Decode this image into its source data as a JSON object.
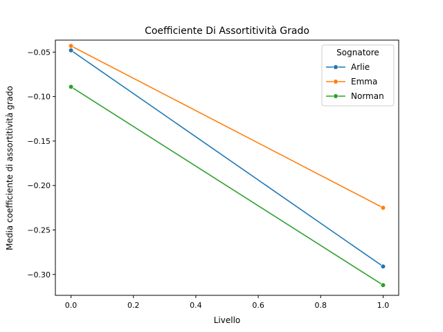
{
  "chart_data": {
    "type": "line",
    "title": "Coefficiente Di Assortitività Grado",
    "xlabel": "Livello",
    "ylabel": "Media coefficiente di assortitività grado",
    "x": [
      0.0,
      1.0
    ],
    "xlim": [
      -0.05,
      1.05
    ],
    "ylim": [
      -0.3235,
      -0.0365
    ],
    "x_ticks": [
      0.0,
      0.2,
      0.4,
      0.6,
      0.8,
      1.0
    ],
    "x_tick_labels": [
      "0.0",
      "0.2",
      "0.4",
      "0.6",
      "0.8",
      "1.0"
    ],
    "y_ticks": [
      -0.05,
      -0.1,
      -0.15,
      -0.2,
      -0.25,
      -0.3
    ],
    "y_tick_labels": [
      "−0.05",
      "−0.10",
      "−0.15",
      "−0.20",
      "−0.25",
      "−0.30"
    ],
    "grid": false,
    "legend": {
      "title": "Sognatore",
      "placement": "top-right"
    },
    "series": [
      {
        "name": "Arlie",
        "color": "#1f77b4",
        "values": [
          -0.048,
          -0.291
        ]
      },
      {
        "name": "Emma",
        "color": "#ff7f0e",
        "values": [
          -0.043,
          -0.225
        ]
      },
      {
        "name": "Norman",
        "color": "#2ca02c",
        "values": [
          -0.089,
          -0.312
        ]
      }
    ]
  }
}
